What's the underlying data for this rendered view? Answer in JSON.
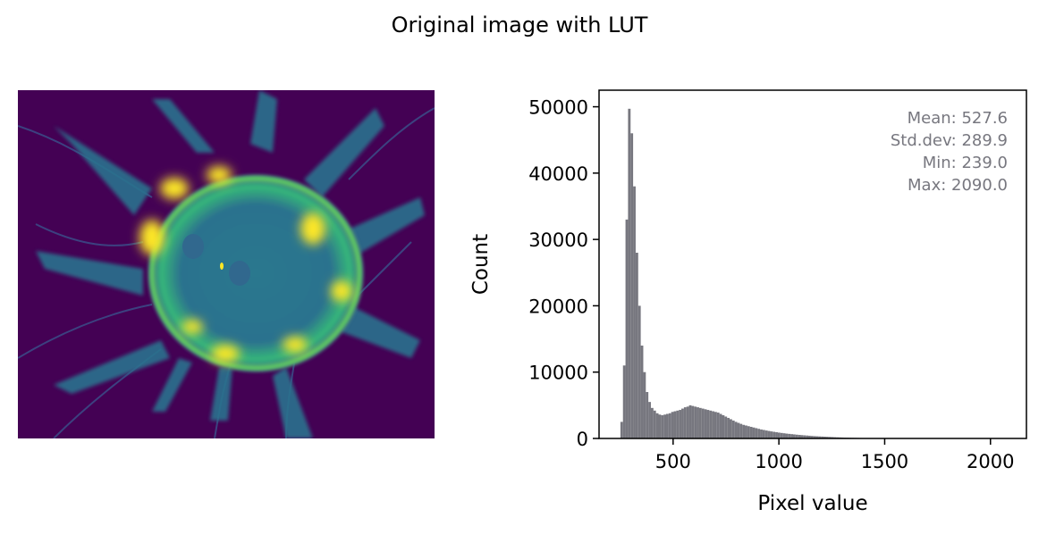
{
  "figure": {
    "title": "Original image with LUT"
  },
  "image_panel": {
    "colormap": "viridis",
    "background_color": "#440154",
    "highlight_color": "#fde725",
    "mid_color": "#21918c"
  },
  "chart_data": {
    "type": "bar",
    "title": "",
    "xlabel": "Pixel value",
    "ylabel": "Count",
    "xlim": [
      150,
      2170
    ],
    "ylim": [
      0,
      52500
    ],
    "xticks": [
      500,
      1000,
      1500,
      2000
    ],
    "yticks": [
      0,
      10000,
      20000,
      30000,
      40000,
      50000
    ],
    "bar_color": "#77777f",
    "bin_width": 12,
    "stats_text": [
      "Mean: 527.6",
      "Std.dev: 289.9",
      "Min: 239.0",
      "Max: 2090.0"
    ],
    "stats_color": "#77777f",
    "x": [
      257,
      269,
      281,
      293,
      305,
      317,
      329,
      341,
      353,
      365,
      377,
      389,
      401,
      413,
      425,
      437,
      449,
      461,
      473,
      485,
      497,
      509,
      521,
      533,
      545,
      557,
      569,
      581,
      593,
      605,
      617,
      629,
      641,
      653,
      665,
      677,
      689,
      701,
      713,
      725,
      737,
      749,
      761,
      773,
      785,
      797,
      809,
      821,
      833,
      845,
      857,
      869,
      881,
      893,
      905,
      917,
      929,
      941,
      953,
      965,
      977,
      989,
      1001,
      1013,
      1025,
      1037,
      1049,
      1061,
      1073,
      1085,
      1097,
      1109,
      1121,
      1133,
      1145,
      1157,
      1169,
      1181,
      1193,
      1205,
      1217,
      1229,
      1241,
      1253,
      1265,
      1277,
      1289,
      1301,
      1313,
      1325,
      1337,
      1349,
      1361,
      1373,
      1385,
      1397,
      1409,
      1421,
      1433,
      1445,
      1457,
      1469,
      1481,
      1493,
      1505,
      1517,
      1529,
      1541,
      1553
    ],
    "values": [
      2500,
      11000,
      33000,
      49700,
      46000,
      38000,
      28000,
      20000,
      14000,
      10000,
      7000,
      5500,
      4600,
      4200,
      3800,
      3600,
      3500,
      3600,
      3700,
      3800,
      4000,
      4100,
      4200,
      4300,
      4500,
      4700,
      4800,
      5000,
      4900,
      4800,
      4700,
      4600,
      4500,
      4400,
      4300,
      4200,
      4100,
      4000,
      3900,
      3700,
      3500,
      3300,
      3100,
      2900,
      2700,
      2500,
      2350,
      2200,
      2050,
      1950,
      1850,
      1750,
      1650,
      1550,
      1450,
      1350,
      1280,
      1200,
      1130,
      1060,
      1000,
      940,
      880,
      830,
      780,
      730,
      690,
      650,
      610,
      570,
      530,
      500,
      470,
      440,
      410,
      380,
      350,
      330,
      310,
      290,
      270,
      250,
      230,
      210,
      190,
      175,
      160,
      145,
      130,
      120,
      110,
      100,
      90,
      80,
      70,
      60,
      50,
      45,
      40,
      35,
      30,
      25,
      20,
      15,
      12,
      10,
      8,
      6,
      4
    ],
    "grid": false,
    "legend": "none"
  }
}
